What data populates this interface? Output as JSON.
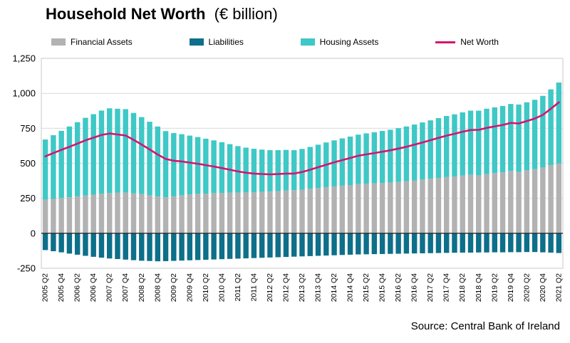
{
  "header": {
    "title": "Household Net Worth",
    "subtitle": "(€ billion)"
  },
  "legend": {
    "items": [
      "Financial Assets",
      "Liabilities",
      "Housing Assets",
      "Net Worth"
    ]
  },
  "footer": {
    "source": "Source: Central Bank of Ireland"
  },
  "chart_data": {
    "type": "bar",
    "title": "Household Net Worth",
    "subtitle": "(€ billion)",
    "ylim": [
      -250,
      1250
    ],
    "yticks": [
      -250,
      0,
      250,
      500,
      750,
      1000,
      1250
    ],
    "grid": true,
    "legend_position": "top",
    "source": "Source: Central Bank of Ireland",
    "x": [
      "2005 Q2",
      "2005 Q3",
      "2005 Q4",
      "2006 Q1",
      "2006 Q2",
      "2006 Q3",
      "2006 Q4",
      "2007 Q1",
      "2007 Q2",
      "2007 Q3",
      "2007 Q4",
      "2008 Q1",
      "2008 Q2",
      "2008 Q3",
      "2008 Q4",
      "2009 Q1",
      "2009 Q2",
      "2009 Q3",
      "2009 Q4",
      "2010 Q1",
      "2010 Q2",
      "2010 Q3",
      "2010 Q4",
      "2011 Q1",
      "2011 Q2",
      "2011 Q3",
      "2011 Q4",
      "2012 Q1",
      "2012 Q2",
      "2012 Q3",
      "2012 Q4",
      "2013 Q1",
      "2013 Q2",
      "2013 Q3",
      "2013 Q4",
      "2014 Q1",
      "2014 Q2",
      "2014 Q3",
      "2014 Q4",
      "2015 Q1",
      "2015 Q2",
      "2015 Q3",
      "2015 Q4",
      "2016 Q1",
      "2016 Q2",
      "2016 Q3",
      "2016 Q4",
      "2017 Q1",
      "2017 Q2",
      "2017 Q3",
      "2017 Q4",
      "2018 Q1",
      "2018 Q2",
      "2018 Q3",
      "2018 Q4",
      "2019 Q1",
      "2019 Q2",
      "2019 Q3",
      "2019 Q4",
      "2020 Q1",
      "2020 Q2",
      "2020 Q3",
      "2020 Q4",
      "2021 Q1",
      "2021 Q2"
    ],
    "x_tick_labels": [
      "2005 Q2",
      "2005 Q4",
      "2006 Q2",
      "2006 Q4",
      "2007 Q2",
      "2007 Q4",
      "2008 Q2",
      "2008 Q4",
      "2009 Q2",
      "2009 Q4",
      "2010 Q2",
      "2010 Q4",
      "2011 Q2",
      "2011 Q4",
      "2012 Q2",
      "2012 Q4",
      "2013 Q2",
      "2013 Q4",
      "2014 Q2",
      "2014 Q4",
      "2015 Q2",
      "2015 Q4",
      "2016 Q2",
      "2016 Q4",
      "2017 Q2",
      "2017 Q4",
      "2018 Q2",
      "2018 Q4",
      "2019 Q2",
      "2019 Q4",
      "2020 Q2",
      "2020 Q4",
      "2021 Q2"
    ],
    "x_label_every": 2,
    "series": [
      {
        "name": "Financial Assets",
        "type": "bar",
        "stack": "assets",
        "color": "#b2b2b2",
        "values": [
          240,
          246,
          252,
          258,
          264,
          270,
          276,
          282,
          288,
          290,
          292,
          285,
          280,
          272,
          263,
          258,
          264,
          272,
          278,
          282,
          284,
          287,
          289,
          290,
          291,
          292,
          294,
          296,
          298,
          302,
          306,
          308,
          312,
          318,
          324,
          330,
          335,
          340,
          345,
          352,
          355,
          357,
          360,
          363,
          367,
          372,
          378,
          384,
          390,
          396,
          402,
          406,
          412,
          418,
          414,
          424,
          430,
          436,
          445,
          438,
          450,
          458,
          470,
          486,
          500
        ]
      },
      {
        "name": "Housing Assets",
        "type": "bar",
        "stack": "assets",
        "color": "#3ec8c6",
        "values": [
          430,
          455,
          480,
          505,
          530,
          555,
          575,
          595,
          605,
          600,
          595,
          575,
          550,
          525,
          500,
          472,
          452,
          436,
          420,
          406,
          392,
          377,
          362,
          347,
          332,
          320,
          310,
          302,
          296,
          292,
          290,
          286,
          291,
          299,
          309,
          319,
          329,
          338,
          346,
          353,
          359,
          365,
          371,
          377,
          384,
          391,
          399,
          408,
          417,
          427,
          436,
          444,
          452,
          458,
          462,
          466,
          470,
          474,
          479,
          482,
          486,
          496,
          512,
          542,
          577
        ]
      },
      {
        "name": "Liabilities",
        "type": "bar",
        "stack": "liabilities",
        "color": "#0d6f8a",
        "values": [
          -120,
          -128,
          -136,
          -145,
          -153,
          -161,
          -168,
          -174,
          -180,
          -184,
          -188,
          -192,
          -196,
          -198,
          -200,
          -199,
          -197,
          -195,
          -193,
          -191,
          -189,
          -187,
          -185,
          -183,
          -181,
          -179,
          -177,
          -175,
          -173,
          -171,
          -169,
          -167,
          -165,
          -163,
          -161,
          -159,
          -157,
          -155,
          -153,
          -151,
          -150,
          -149,
          -148,
          -147,
          -146,
          -145,
          -144,
          -143,
          -142,
          -141,
          -140,
          -139,
          -138,
          -138,
          -137,
          -137,
          -136,
          -136,
          -135,
          -135,
          -134,
          -134,
          -136,
          -138,
          -141
        ]
      },
      {
        "name": "Net Worth",
        "type": "line",
        "color": "#d4156e",
        "values": [
          550,
          573,
          596,
          618,
          641,
          664,
          683,
          703,
          713,
          706,
          699,
          668,
          634,
          599,
          563,
          531,
          519,
          513,
          505,
          497,
          487,
          477,
          466,
          454,
          442,
          433,
          427,
          423,
          421,
          423,
          427,
          427,
          438,
          454,
          472,
          490,
          507,
          523,
          538,
          554,
          564,
          573,
          583,
          593,
          605,
          618,
          633,
          649,
          665,
          682,
          698,
          711,
          726,
          738,
          739,
          753,
          764,
          774,
          789,
          785,
          802,
          820,
          846,
          890,
          936
        ]
      }
    ]
  }
}
